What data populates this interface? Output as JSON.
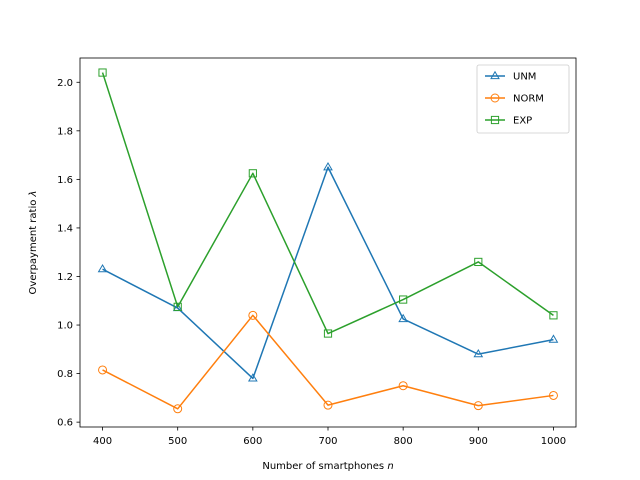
{
  "chart_data": {
    "type": "line",
    "title": "",
    "xlabel": "Number of smartphones n",
    "xlabel_parts": {
      "text": "Number of smartphones ",
      "var": "n"
    },
    "ylabel": "Overpayment ratio λ",
    "ylabel_parts": {
      "text": "Overpayment ratio ",
      "var": "λ"
    },
    "x": [
      400,
      500,
      600,
      700,
      800,
      900,
      1000
    ],
    "xlim": [
      370,
      1030
    ],
    "ylim": [
      0.58,
      2.1
    ],
    "xticks": [
      400,
      500,
      600,
      700,
      800,
      900,
      1000
    ],
    "yticks": [
      0.6,
      0.8,
      1.0,
      1.2,
      1.4,
      1.6,
      1.8,
      2.0
    ],
    "ytick_labels": [
      "0.6",
      "0.8",
      "1.0",
      "1.2",
      "1.4",
      "1.6",
      "1.8",
      "2.0"
    ],
    "grid": false,
    "legend_position": "top-right",
    "series": [
      {
        "name": "UNM",
        "marker": "triangle",
        "color": "#1f77b4",
        "values": [
          1.23,
          1.07,
          0.78,
          1.65,
          1.025,
          0.88,
          0.94
        ]
      },
      {
        "name": "NORM",
        "marker": "circle",
        "color": "#ff7f0e",
        "values": [
          0.815,
          0.655,
          1.04,
          0.67,
          0.75,
          0.668,
          0.71
        ]
      },
      {
        "name": "EXP",
        "marker": "square",
        "color": "#2ca02c",
        "values": [
          2.04,
          1.075,
          1.625,
          0.965,
          1.105,
          1.26,
          1.04
        ]
      }
    ]
  }
}
